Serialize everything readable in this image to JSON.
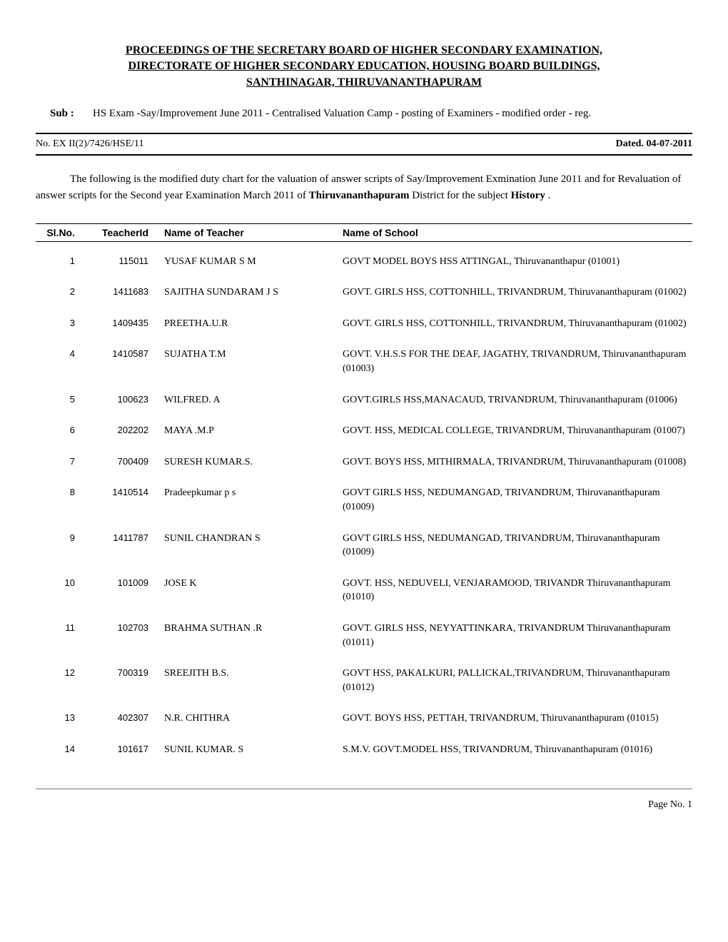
{
  "header": {
    "title_line1": "PROCEEDINGS OF THE  SECRETARY BOARD OF HIGHER SECONDARY EXAMINATION,",
    "title_line2": "DIRECTORATE OF HIGHER SECONDARY EDUCATION, HOUSING BOARD BUILDINGS,",
    "title_line3": "SANTHINAGAR, THIRUVANANTHAPURAM"
  },
  "sub": {
    "label": "Sub :",
    "text": "HS Exam -Say/Improvement June 2011 - Centralised Valuation Camp - posting of Examiners - modified order - reg."
  },
  "ref": {
    "number": "No. EX II(2)/7426/HSE/11",
    "dated": "Dated. 04-07-2011"
  },
  "body": {
    "pre": "The following is the modified duty chart for the valuation of answer scripts of  Say/Improvement Exmination  June 2011 and for Revaluation of answer scripts for the Second year Examination March 2011 of  ",
    "district": "Thiruvananthapuram",
    "mid": " District for the subject ",
    "subject": "History",
    "post": " ."
  },
  "table": {
    "headers": {
      "slno": "Sl.No.",
      "teacherId": "TeacherId",
      "name": "Name of Teacher",
      "school": "Name of School"
    },
    "rows": [
      {
        "sl": "1",
        "tid": "115011",
        "name": "YUSAF KUMAR S M",
        "school": "GOVT MODEL BOYS HSS ATTINGAL, Thiruvananthapur (01001)"
      },
      {
        "sl": "2",
        "tid": "1411683",
        "name": "SAJITHA SUNDARAM J S",
        "school": "GOVT. GIRLS HSS,  COTTONHILL, TRIVANDRUM, Thiruvananthapuram (01002)"
      },
      {
        "sl": "3",
        "tid": "1409435",
        "name": "PREETHA.U.R",
        "school": "GOVT. GIRLS HSS,  COTTONHILL, TRIVANDRUM, Thiruvananthapuram (01002)"
      },
      {
        "sl": "4",
        "tid": "1410587",
        "name": "SUJATHA T.M",
        "school": "GOVT. V.H.S.S  FOR THE DEAF, JAGATHY, TRIVANDRUM, Thiruvananthapuram (01003)"
      },
      {
        "sl": "5",
        "tid": "100623",
        "name": "WILFRED. A",
        "school": "GOVT.GIRLS HSS,MANACAUD, TRIVANDRUM, Thiruvananthapuram (01006)"
      },
      {
        "sl": "6",
        "tid": "202202",
        "name": "MAYA .M.P",
        "school": "GOVT. HSS, MEDICAL COLLEGE, TRIVANDRUM, Thiruvananthapuram (01007)"
      },
      {
        "sl": "7",
        "tid": "700409",
        "name": "SURESH KUMAR.S.",
        "school": "GOVT. BOYS HSS, MITHIRMALA, TRIVANDRUM, Thiruvananthapuram (01008)"
      },
      {
        "sl": "8",
        "tid": "1410514",
        "name": "Pradeepkumar p s",
        "school": "GOVT GIRLS HSS, NEDUMANGAD, TRIVANDRUM, Thiruvananthapuram (01009)"
      },
      {
        "sl": "9",
        "tid": "1411787",
        "name": "SUNIL CHANDRAN S",
        "school": "GOVT GIRLS HSS, NEDUMANGAD, TRIVANDRUM, Thiruvananthapuram (01009)"
      },
      {
        "sl": "10",
        "tid": "101009",
        "name": "JOSE K",
        "school": "GOVT. HSS, NEDUVELI, VENJARAMOOD, TRIVANDR Thiruvananthapuram (01010)"
      },
      {
        "sl": "11",
        "tid": "102703",
        "name": "BRAHMA SUTHAN .R",
        "school": "GOVT. GIRLS HSS, NEYYATTINKARA, TRIVANDRUM Thiruvananthapuram (01011)"
      },
      {
        "sl": "12",
        "tid": "700319",
        "name": "SREEJITH B.S.",
        "school": "GOVT HSS, PAKALKURI, PALLICKAL,TRIVANDRUM, Thiruvananthapuram (01012)"
      },
      {
        "sl": "13",
        "tid": "402307",
        "name": "N.R. CHITHRA",
        "school": "GOVT. BOYS HSS, PETTAH, TRIVANDRUM, Thiruvananthapuram (01015)"
      },
      {
        "sl": "14",
        "tid": "101617",
        "name": "SUNIL KUMAR. S",
        "school": "S.M.V. GOVT.MODEL HSS, TRIVANDRUM, Thiruvananthapuram (01016)"
      }
    ]
  },
  "footer": {
    "page": "Page No. 1"
  }
}
